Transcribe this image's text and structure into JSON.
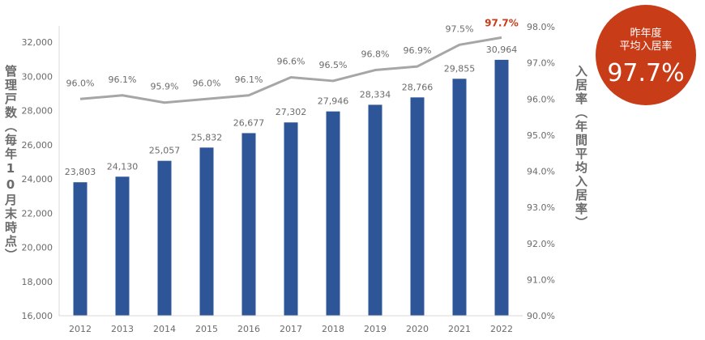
{
  "chart_data": {
    "type": "bar+line",
    "categories": [
      "2012",
      "2013",
      "2014",
      "2015",
      "2016",
      "2017",
      "2018",
      "2019",
      "2020",
      "2021",
      "2022"
    ],
    "series": [
      {
        "type": "bar",
        "axis": "left",
        "values": [
          23803,
          24130,
          25057,
          25832,
          26677,
          27302,
          27946,
          28334,
          28766,
          29855,
          30964
        ],
        "labels": [
          "23,803",
          "24,130",
          "25,057",
          "25,832",
          "26,677",
          "27,302",
          "27,946",
          "28,334",
          "28,766",
          "29,855",
          "30,964"
        ],
        "color": "#2e5597"
      },
      {
        "type": "line",
        "axis": "right",
        "values": [
          96.0,
          96.1,
          95.9,
          96.0,
          96.1,
          96.6,
          96.5,
          96.8,
          96.9,
          97.5,
          97.7
        ],
        "labels": [
          "96.0%",
          "96.1%",
          "95.9%",
          "96.0%",
          "96.1%",
          "96.6%",
          "96.5%",
          "96.8%",
          "96.9%",
          "97.5%",
          "97.7%"
        ],
        "color": "#a6a6a6",
        "highlight_color": "#c83c18"
      }
    ],
    "y_left": {
      "title": "管理戸数（毎年10月末時点）",
      "range": [
        16000,
        32000
      ],
      "ticks": [
        16000,
        18000,
        20000,
        22000,
        24000,
        26000,
        28000,
        30000,
        32000
      ],
      "tick_labels": [
        "16,000",
        "18,000",
        "20,000",
        "22,000",
        "24,000",
        "26,000",
        "28,000",
        "30,000",
        "32,000"
      ]
    },
    "y_right": {
      "title": "入居率（年間平均入居率）",
      "range": [
        90.0,
        98.0
      ],
      "ticks": [
        90,
        91,
        92,
        93,
        94,
        95,
        96,
        97,
        98
      ],
      "tick_labels": [
        "90.0%",
        "91.0%",
        "92.0%",
        "93.0%",
        "94.0%",
        "95.0%",
        "96.0%",
        "97.0%",
        "98.0%"
      ]
    },
    "grid": false
  },
  "badge": {
    "label": "昨年度\n平均入居率",
    "value": "97.7%",
    "color": "#c83c18"
  }
}
